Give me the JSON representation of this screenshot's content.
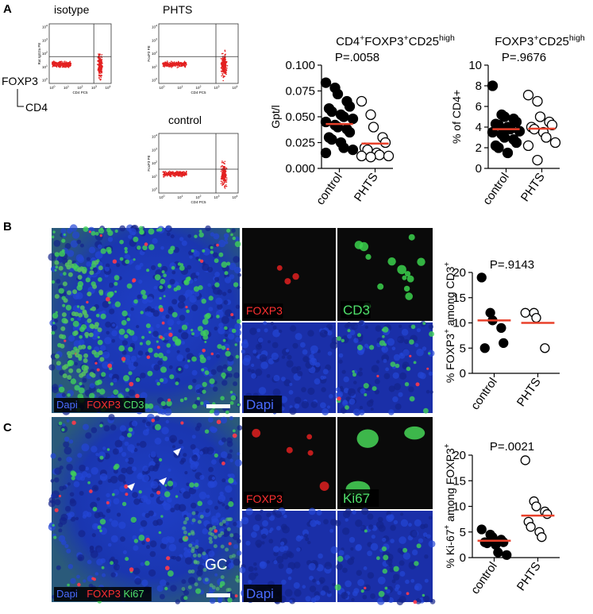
{
  "panels": {
    "a": "A",
    "b": "B",
    "c": "C"
  },
  "flow": {
    "titles": [
      "isotype",
      "PHTS",
      "control"
    ],
    "y_axis_labels": [
      "Rat IgG2a PE",
      "FoxP3 PE",
      "FoxP3 PE"
    ],
    "x_axis_label": "CD4 PC5",
    "axis_y": "FOXP3",
    "axis_x": "CD4",
    "tick_base": "10",
    "tick_exponents": [
      "0",
      "1",
      "2",
      "3",
      "4"
    ]
  },
  "images": {
    "b": {
      "merge": [
        "Dapi",
        "FOXP3",
        "CD3"
      ],
      "tiles": [
        "FOXP3",
        "CD3",
        "Dapi"
      ]
    },
    "c": {
      "merge": [
        "Dapi",
        "FOXP3",
        "Ki67"
      ],
      "tiles": [
        "FOXP3",
        "Ki67",
        "Dapi"
      ],
      "region": "GC"
    }
  },
  "chart_data": [
    {
      "type": "dotplot",
      "title": [
        {
          "text": "CD4"
        },
        {
          "text": "+",
          "sup": true
        },
        {
          "text": "FOXP3"
        },
        {
          "text": "+",
          "sup": true
        },
        {
          "text": "CD25"
        },
        {
          "text": "high",
          "sup": true
        }
      ],
      "annotation": "P=.0058",
      "y_label": [
        {
          "text": "Gpt/l"
        }
      ],
      "categories": [
        "control",
        "PHTS"
      ],
      "values": [
        [
          0.083,
          0.078,
          0.072,
          0.065,
          0.06,
          0.058,
          0.055,
          0.052,
          0.05,
          0.048,
          0.045,
          0.042,
          0.04,
          0.038,
          0.035,
          0.03,
          0.028,
          0.025,
          0.02,
          0.018,
          0.015
        ],
        [
          0.065,
          0.052,
          0.04,
          0.03,
          0.025,
          0.02,
          0.018,
          0.015,
          0.013,
          0.012,
          0.012,
          0.011
        ]
      ],
      "means": [
        0.043,
        0.024
      ],
      "marker_fill": [
        "#000000",
        "#ffffff"
      ],
      "line_color": "#e8402a",
      "ylim": [
        0,
        0.1
      ],
      "yticks": [
        {
          "value": 0,
          "label": "0.000"
        },
        {
          "value": 0.025,
          "label": "0.025"
        },
        {
          "value": 0.05,
          "label": "0.050"
        },
        {
          "value": 0.075,
          "label": "0.075"
        },
        {
          "value": 0.1,
          "label": "0.100"
        }
      ]
    },
    {
      "type": "dotplot",
      "title": [
        {
          "text": "FOXP3"
        },
        {
          "text": "+",
          "sup": true
        },
        {
          "text": "CD25"
        },
        {
          "text": "high",
          "sup": true
        }
      ],
      "annotation": "P=.9676",
      "y_label": [
        {
          "text": "% of CD4+"
        }
      ],
      "categories": [
        "control",
        "PHTS"
      ],
      "values": [
        [
          8,
          5.2,
          5,
          4.8,
          4.5,
          4.3,
          4.2,
          4,
          3.8,
          3.6,
          3.5,
          3.3,
          3,
          2.8,
          2.5,
          2.2,
          2,
          1.5
        ],
        [
          7.1,
          6.5,
          5,
          4.5,
          4.2,
          4,
          3.8,
          3.5,
          3,
          2.5,
          2.2,
          0.8
        ]
      ],
      "means": [
        3.8,
        3.85
      ],
      "marker_fill": [
        "#000000",
        "#ffffff"
      ],
      "line_color": "#e8402a",
      "ylim": [
        0,
        10
      ],
      "yticks": [
        0,
        2,
        4,
        6,
        8,
        10
      ]
    },
    {
      "type": "dotplot",
      "annotation": "P=.9143",
      "y_label": [
        {
          "text": "% FOXP3"
        },
        {
          "text": "+",
          "sup": true
        },
        {
          "text": " among CD3"
        },
        {
          "text": "+",
          "sup": true
        }
      ],
      "categories": [
        "control",
        "PHTS"
      ],
      "values": [
        [
          19,
          12,
          10.5,
          9,
          6,
          5
        ],
        [
          12,
          12,
          11,
          5
        ]
      ],
      "means": [
        10.5,
        10
      ],
      "marker_fill": [
        "#000000",
        "#ffffff"
      ],
      "line_color": "#e8402a",
      "ylim": [
        0,
        20
      ],
      "yticks": [
        0,
        5,
        10,
        15,
        20
      ]
    },
    {
      "type": "dotplot",
      "annotation": "P=.0021",
      "y_label": [
        {
          "text": "% Ki-67"
        },
        {
          "text": "+",
          "sup": true
        },
        {
          "text": " among FOXP3"
        },
        {
          "text": "+",
          "sup": true
        }
      ],
      "categories": [
        "control",
        "PHTS"
      ],
      "values": [
        [
          5.5,
          4.5,
          4,
          3.5,
          3,
          3,
          2.8,
          2.5,
          1,
          0.5
        ],
        [
          19,
          11,
          10,
          9,
          8.5,
          7,
          6,
          5,
          4
        ]
      ],
      "means": [
        3.3,
        8.2
      ],
      "marker_fill": [
        "#000000",
        "#ffffff"
      ],
      "line_color": "#e8402a",
      "ylim": [
        0,
        20
      ],
      "yticks": [
        0,
        5,
        10,
        15,
        20
      ]
    }
  ]
}
